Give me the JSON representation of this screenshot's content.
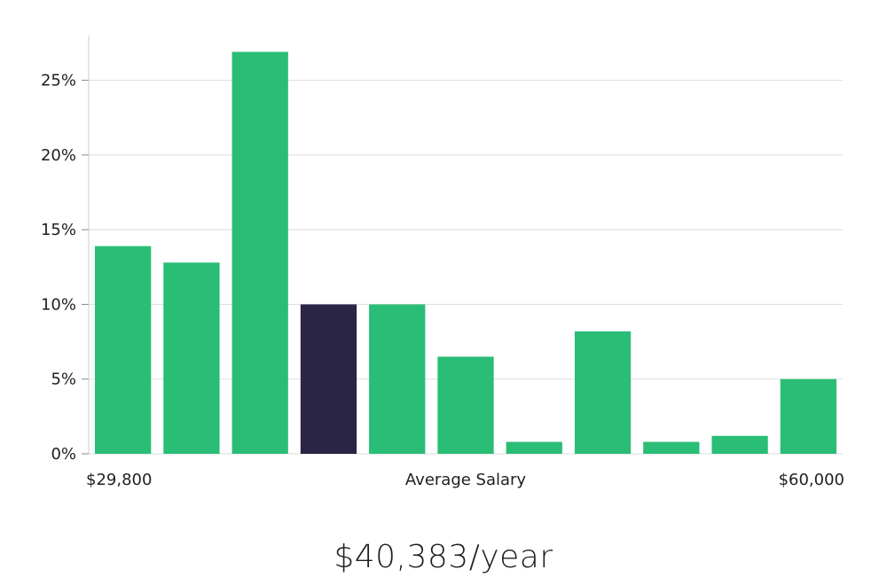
{
  "chart_data": {
    "type": "bar",
    "values": [
      13.9,
      12.8,
      26.9,
      10.0,
      10.0,
      6.5,
      0.8,
      8.2,
      0.8,
      1.2,
      5.0
    ],
    "highlight_index": 3,
    "ylim": [
      0,
      28
    ],
    "yticks": [
      0,
      5,
      10,
      15,
      20,
      25
    ],
    "ytick_labels": [
      "0%",
      "5%",
      "10%",
      "15%",
      "20%",
      "25%"
    ],
    "x_min_label": "$29,800",
    "x_center_label": "Average Salary",
    "x_max_label": "$60,000",
    "grid": true,
    "colors": {
      "bar": "#29bd76",
      "highlight": "#2a2545",
      "grid": "#dddddd",
      "axis": "#cccccc"
    }
  },
  "summary": {
    "value": "$40,383/year"
  }
}
